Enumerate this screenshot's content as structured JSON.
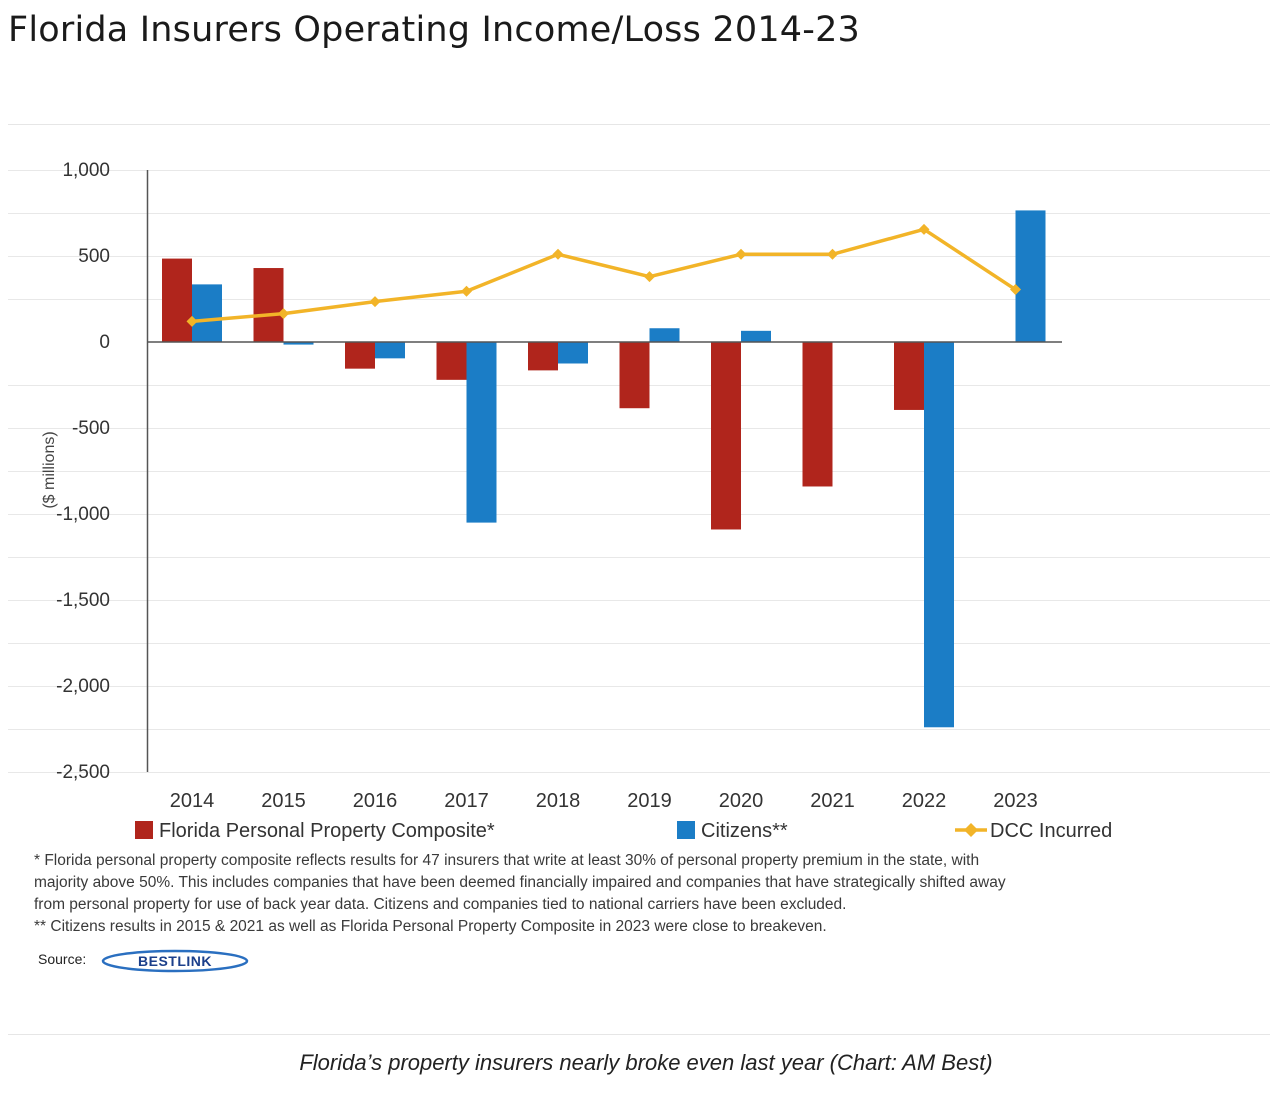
{
  "page": {
    "title": "Florida Insurers Operating Income/Loss 2014-23",
    "caption": "Florida’s property insurers nearly broke even last year (Chart: AM Best)"
  },
  "chart_data": {
    "type": "bar",
    "title": "Florida Insurers Operating Income/Loss 2014-23",
    "xlabel": "",
    "ylabel": "($ millions)",
    "ylim": [
      -2500,
      1000
    ],
    "yticks": [
      1000,
      500,
      0,
      -500,
      -1000,
      -1500,
      -2000,
      -2500
    ],
    "ytick_labels": [
      "1,000",
      "500",
      "0",
      "-500",
      "-1,000",
      "-1,500",
      "-2,000",
      "-2,500"
    ],
    "categories": [
      "2014",
      "2015",
      "2016",
      "2017",
      "2018",
      "2019",
      "2020",
      "2021",
      "2022",
      "2023"
    ],
    "series": [
      {
        "name": "Florida Personal Property Composite*",
        "kind": "bar",
        "color": "#b0251c",
        "values": [
          485,
          430,
          -155,
          -220,
          -165,
          -385,
          -1090,
          -840,
          -395,
          0
        ]
      },
      {
        "name": "Citizens**",
        "kind": "bar",
        "color": "#1b7dc6",
        "values": [
          335,
          -15,
          -95,
          -1050,
          -125,
          80,
          65,
          0,
          -2240,
          765
        ]
      },
      {
        "name": "DCC Incurred",
        "kind": "line",
        "color": "#f2b428",
        "values": [
          120,
          165,
          235,
          295,
          510,
          380,
          510,
          510,
          655,
          305
        ]
      }
    ],
    "legend_position": "bottom",
    "footnotes": [
      "* Florida personal property composite reflects results for 47 insurers that write at least 30% of personal property premium in the state, with",
      "majority above 50%. This includes companies that have been deemed financially impaired and companies that have strategically shifted away",
      "from personal property for use of back year data. Citizens and companies tied to national carriers have been excluded.",
      "** Citizens results in 2015 & 2021 as well as Florida Personal Property Composite in 2023 were close to breakeven."
    ],
    "source_label": "Source:",
    "source_logo_text": "BESTLINK"
  }
}
